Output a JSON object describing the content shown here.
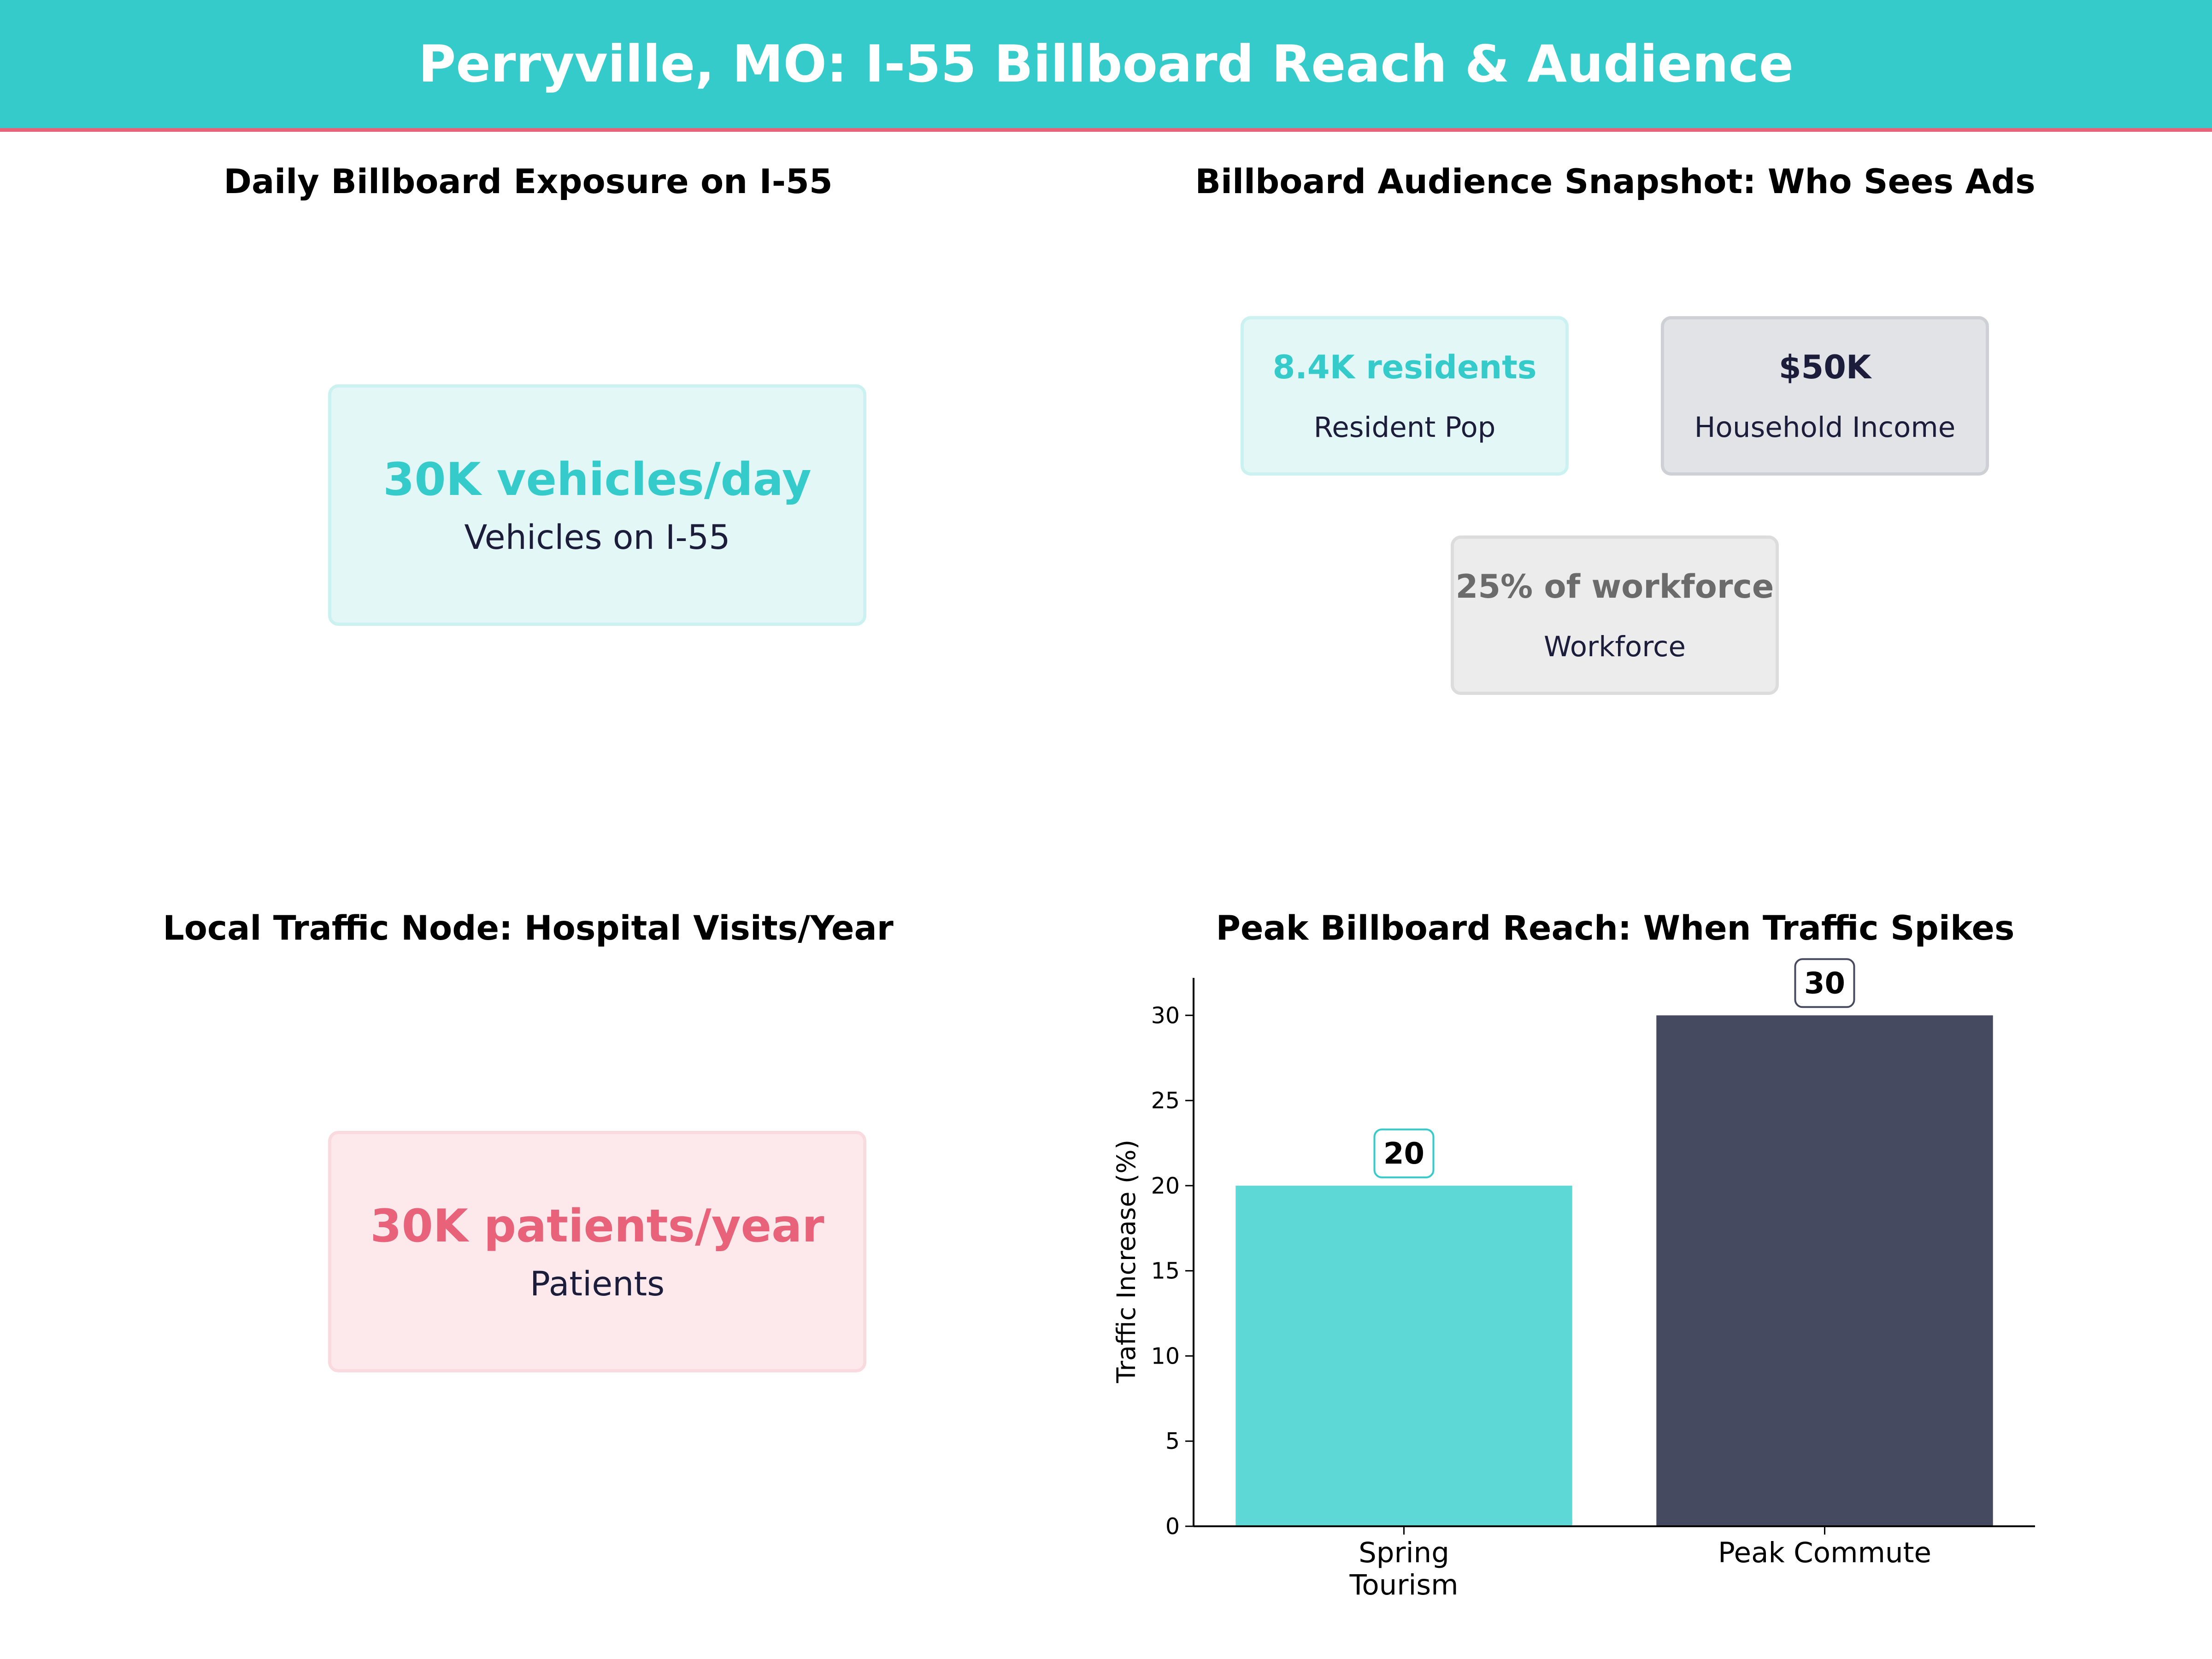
{
  "header": {
    "title": "Perryville, MO: I-55 Billboard Reach & Audience"
  },
  "panels": {
    "exposure": {
      "title": "Daily Billboard Exposure on I-55",
      "value": "30K vehicles/day",
      "label": "Vehicles on I-55"
    },
    "audience": {
      "title": "Billboard Audience Snapshot: Who Sees Ads",
      "cards": [
        {
          "value": "8.4K residents",
          "label": "Resident Pop"
        },
        {
          "value": "$50K",
          "label": "Household Income"
        },
        {
          "value": "25% of workforce",
          "label": "Workforce"
        }
      ]
    },
    "hospital": {
      "title": "Local Traffic Node: Hospital Visits/Year",
      "value": "30K patients/year",
      "label": "Patients"
    }
  },
  "colors": {
    "teal": "#36cbcb",
    "teal_bar": "#5dd8d6",
    "navy": "#454a61",
    "pink": "#e8637a",
    "dark_text": "#1b1d3a",
    "gray_text": "#6b6b6b"
  },
  "chart_data": {
    "type": "bar",
    "title": "Peak Billboard Reach: When Traffic Spikes",
    "categories": [
      "Spring Tourism",
      "Peak Commute"
    ],
    "values": [
      20,
      30
    ],
    "data_labels": [
      "20",
      "30"
    ],
    "xlabel": "",
    "ylabel": "Traffic Increase (%)",
    "ylim": [
      0,
      32.2
    ],
    "yticks": [
      0,
      5,
      10,
      15,
      20,
      25,
      30
    ],
    "grid": false,
    "legend": "none"
  }
}
